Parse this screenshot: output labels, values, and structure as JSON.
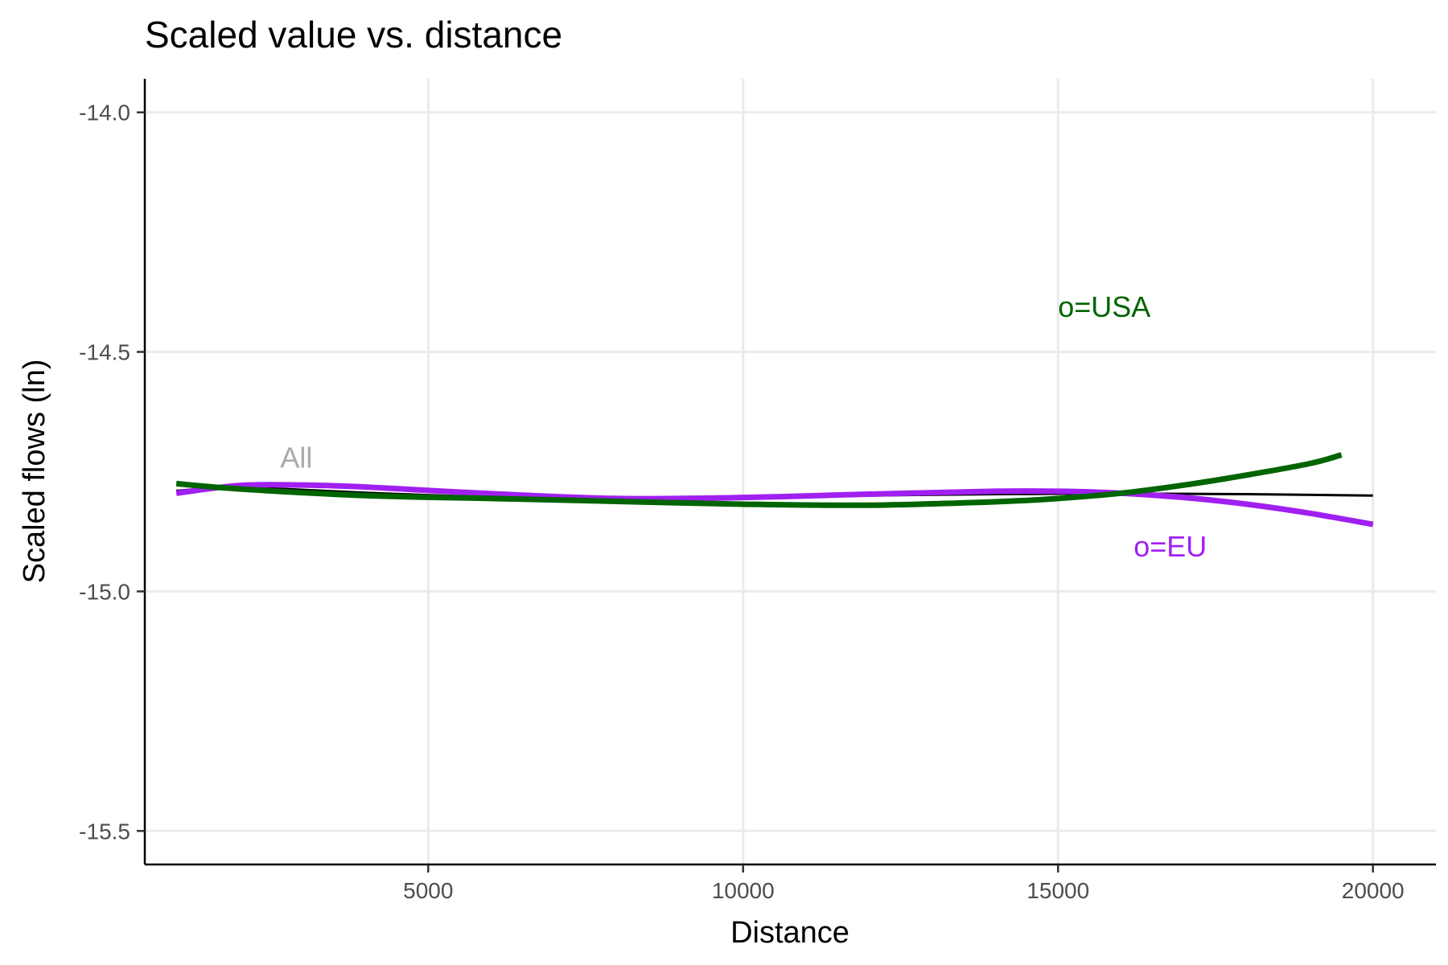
{
  "chart_data": {
    "type": "line",
    "title": "Scaled value vs. distance",
    "xlabel": "Distance",
    "ylabel": "Scaled flows (ln)",
    "xlim": [
      500,
      21000
    ],
    "ylim": [
      -15.57,
      -13.93
    ],
    "x_ticks": [
      5000,
      10000,
      15000,
      20000
    ],
    "y_ticks": [
      -14.0,
      -14.5,
      -15.0,
      -15.5
    ],
    "x_tick_labels": [
      "5000",
      "10000",
      "15000",
      "20000"
    ],
    "y_tick_labels": [
      "-14.0",
      "-14.5",
      "-15.0",
      "-15.5"
    ],
    "grid": true,
    "legend": "none",
    "series": [
      {
        "name": "All",
        "color": "#000000",
        "x": [
          1000,
          2000,
          4000,
          6000,
          8000,
          10000,
          12000,
          14000,
          16000,
          18000,
          20000
        ],
        "y": [
          -14.79,
          -14.783,
          -14.794,
          -14.803,
          -14.807,
          -14.805,
          -14.8,
          -14.797,
          -14.796,
          -14.797,
          -14.8
        ]
      },
      {
        "name": "o=EU",
        "color": "#a020f0",
        "x": [
          1000,
          2000,
          3000,
          4000,
          6000,
          8000,
          10000,
          12000,
          14000,
          15000,
          16000,
          17000,
          18000,
          19000,
          20000
        ],
        "y": [
          -14.795,
          -14.779,
          -14.778,
          -14.782,
          -14.796,
          -14.806,
          -14.804,
          -14.797,
          -14.791,
          -14.791,
          -14.795,
          -14.804,
          -14.818,
          -14.837,
          -14.86
        ]
      },
      {
        "name": "o=USA",
        "color": "#006400",
        "x": [
          1000,
          2000,
          4000,
          6000,
          8000,
          10000,
          12000,
          14000,
          15000,
          16000,
          17000,
          18000,
          19000,
          19500
        ],
        "y": [
          -14.775,
          -14.786,
          -14.8,
          -14.806,
          -14.812,
          -14.818,
          -14.82,
          -14.813,
          -14.806,
          -14.795,
          -14.778,
          -14.757,
          -14.733,
          -14.715
        ]
      }
    ],
    "annotations": [
      {
        "text": "All",
        "x": 2650,
        "y": -14.72,
        "color": "#aaaaaa"
      },
      {
        "text": "o=USA",
        "x": 15000,
        "y": -14.405,
        "color": "#006400"
      },
      {
        "text": "o=EU",
        "x": 16200,
        "y": -14.905,
        "color": "#a020f0"
      }
    ]
  }
}
